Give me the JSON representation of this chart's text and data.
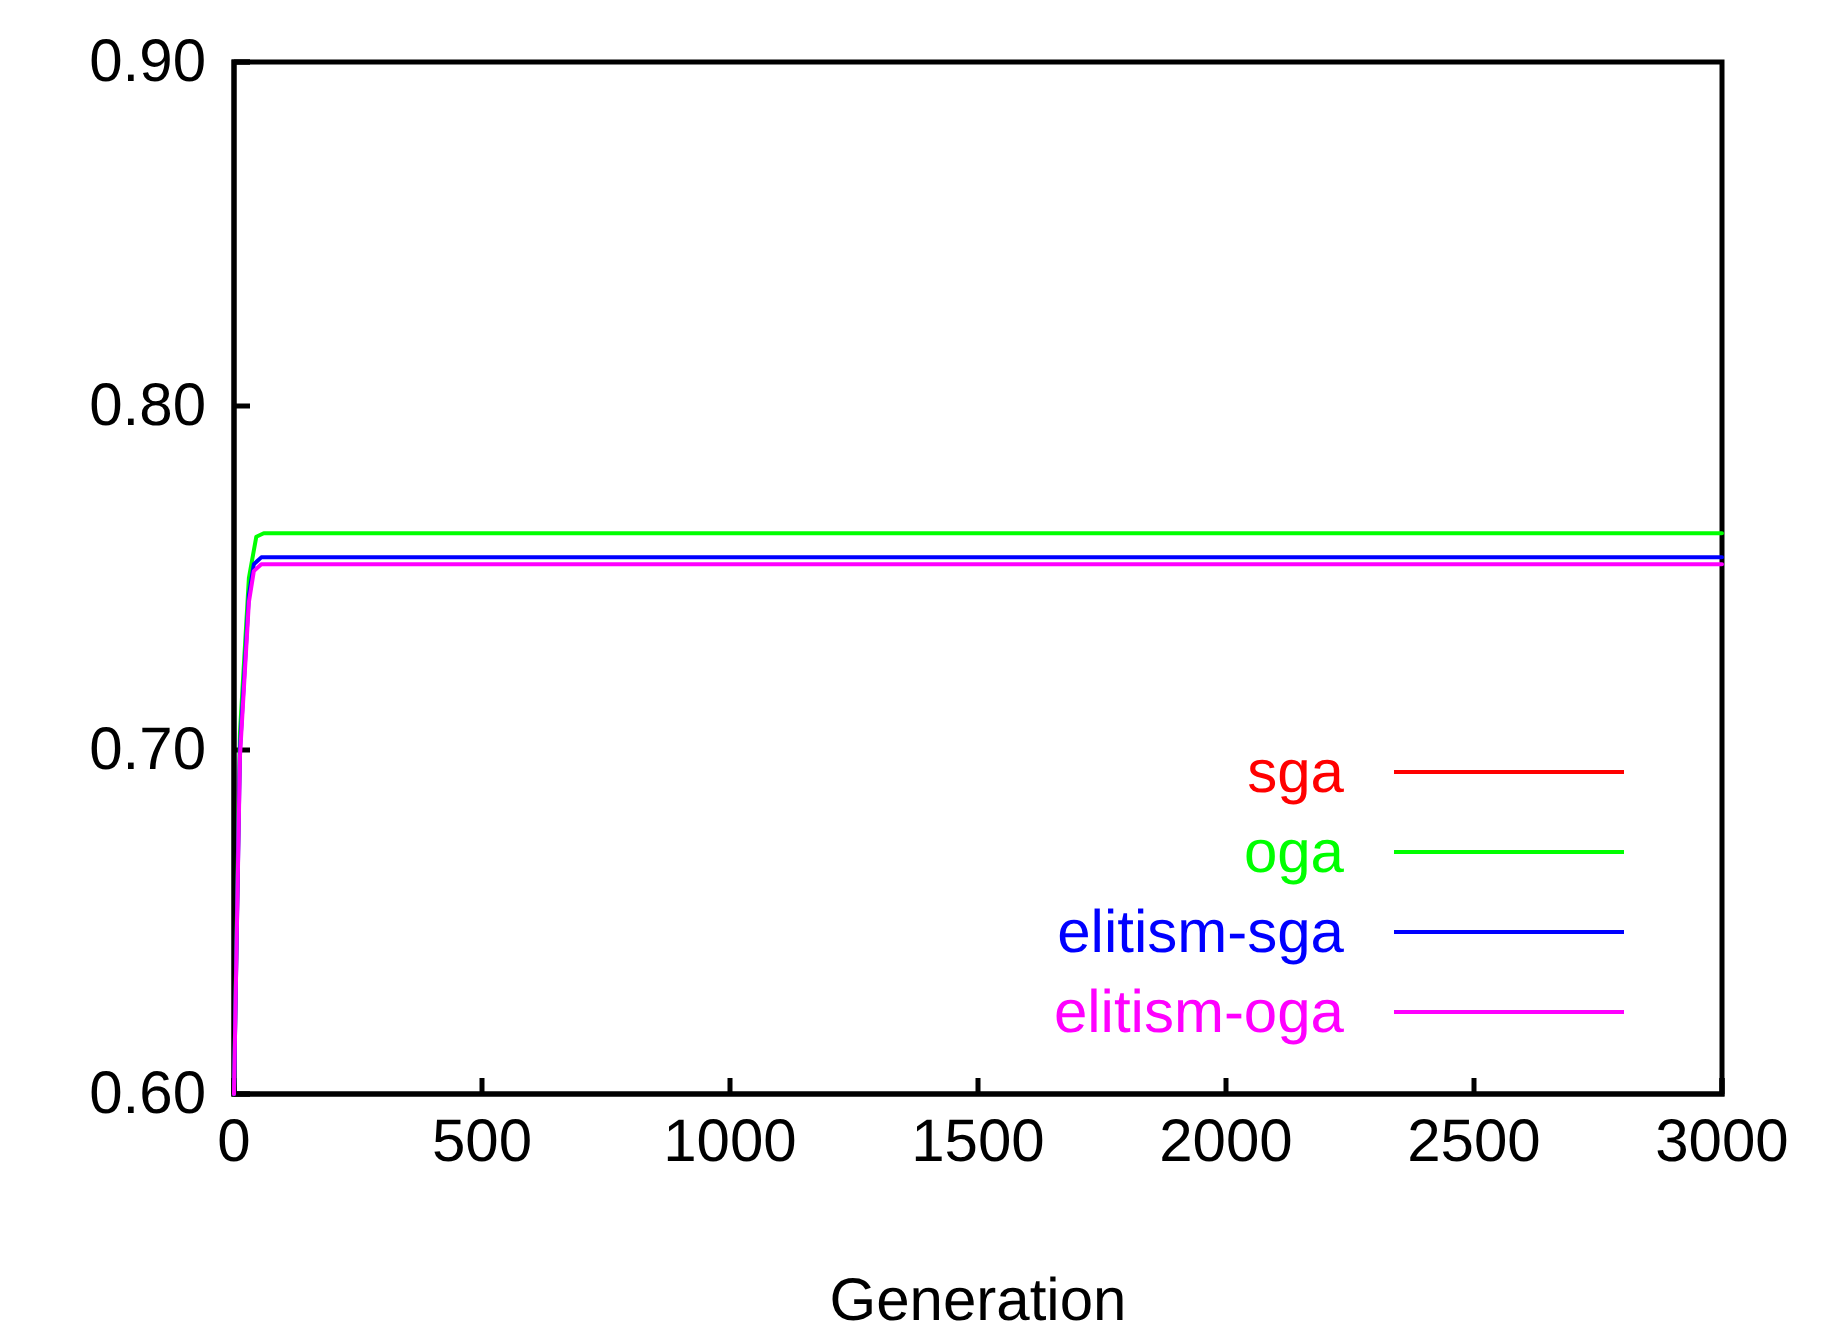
{
  "chart_data": {
    "type": "line",
    "xlabel": "Generation",
    "xlim": [
      0,
      3000
    ],
    "xticks": [
      0,
      500,
      1000,
      1500,
      2000,
      2500,
      3000
    ],
    "ylim": [
      0.6,
      0.9
    ],
    "yticks": [
      {
        "value": 0.6,
        "label": "0.60"
      },
      {
        "value": 0.7,
        "label": "0.70"
      },
      {
        "value": 0.8,
        "label": "0.80"
      },
      {
        "value": 0.9,
        "label": "0.90"
      }
    ],
    "legend": "bottom right",
    "grid": false,
    "series": [
      {
        "name": "sga",
        "color": "#ff0000"
      },
      {
        "name": "oga",
        "color": "#00ff00",
        "x": [
          0,
          12,
          30,
          45,
          60,
          3000
        ],
        "values": [
          0.6,
          0.705,
          0.75,
          0.762,
          0.763,
          0.763
        ]
      },
      {
        "name": "elitism-sga",
        "color": "#0000ff",
        "x": [
          0,
          12,
          30,
          40,
          55,
          3000
        ],
        "values": [
          0.6,
          0.7,
          0.745,
          0.754,
          0.756,
          0.756
        ]
      },
      {
        "name": "elitism-oga",
        "color": "#ff00ff",
        "x": [
          0,
          12,
          30,
          40,
          55,
          3000
        ],
        "values": [
          0.6,
          0.698,
          0.743,
          0.752,
          0.754,
          0.754
        ]
      }
    ]
  }
}
